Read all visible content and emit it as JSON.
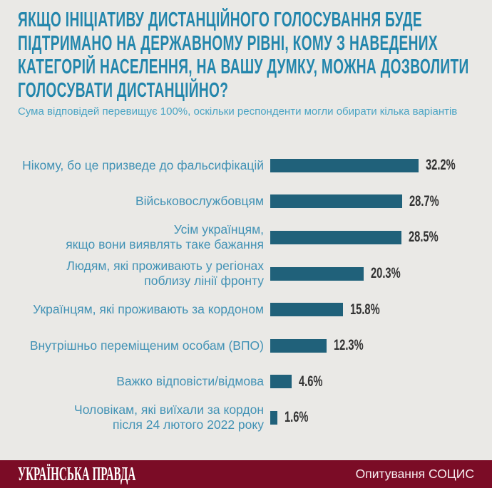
{
  "title": "ЯКЩО ІНІЦІАТИВУ ДИСТАНЦІЙНОГО ГОЛОСУВАННЯ БУДЕ\nПІДТРИМАНО НА ДЕРЖАВНОМУ РІВНІ, КОМУ З НАВЕДЕНИХ\nКАТЕГОРІЙ НАСЕЛЕННЯ, НА ВАШУ ДУМКУ, МОЖНА ДОЗВОЛИТИ\nГОЛОСУВАТИ ДИСТАНЦІЙНО?",
  "subtitle": "Сума відповідей перевищує 100%, оскільки респонденти могли обирати кілька варіантів",
  "chart_data": {
    "type": "bar",
    "orientation": "horizontal",
    "title": "Якщо ініціативу дистанційного голосування буде підтримано на державному рівні, кому з наведених категорій населення, на вашу думку, можна дозволити голосувати дистанційно?",
    "note": "Сума відповідей перевищує 100%, оскільки респонденти могли обирати кілька варіантів",
    "categories": [
      "Нікому, бо це призведе до фальсифікацій",
      "Військовослужбовцям",
      "Усім українцям,\nякщо вони виявлять таке бажання",
      "Людям, які проживають у регіонах\nпоблизу лінії фронту",
      "Українцям, які проживають за кордоном",
      "Внутрішньо переміщеним особам (ВПО)",
      "Важко відповісти/відмова",
      "Чоловікам, які виїхали за кордон\nпісля 24 лютого 2022 року"
    ],
    "values": [
      32.2,
      28.7,
      28.5,
      20.3,
      15.8,
      12.3,
      4.6,
      1.6
    ],
    "value_labels": [
      "32.2%",
      "28.7%",
      "28.5%",
      "20.3%",
      "15.8%",
      "12.3%",
      "4.6%",
      "1.6%"
    ],
    "xlim": [
      0,
      35
    ],
    "grid": false,
    "legend": false,
    "bar_color": "#20617a"
  },
  "footer": {
    "brand": "УКРАЇНСЬКА ПРАВДА",
    "source": "Опитування СОЦИС"
  },
  "colors": {
    "background": "#eae9e6",
    "title": "#2386ac",
    "subtitle": "#4aa4c4",
    "category_label": "#4292b5",
    "bar": "#20617a",
    "value_label": "#333333",
    "footer_bg": "#7b0c26",
    "footer_text": "#f7edf0"
  }
}
